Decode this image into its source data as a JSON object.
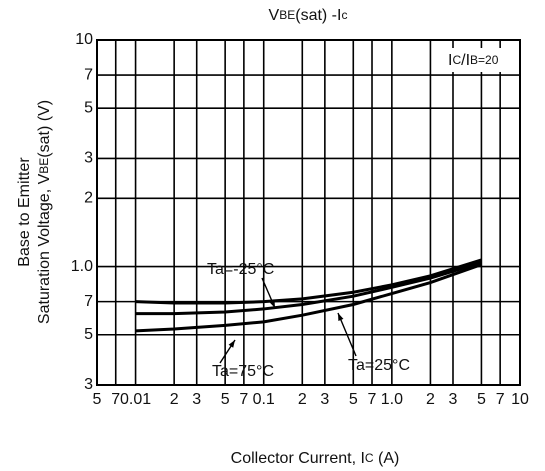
{
  "chart_data": {
    "type": "line",
    "title": [
      "V",
      "BE",
      "(sat) -I",
      "c"
    ],
    "y_label": [
      [
        "Base to Emitter"
      ],
      [
        "Saturation Voltage, V",
        "BE",
        "(sat) (V)"
      ]
    ],
    "x_label": [
      "Collector Current, I",
      "C",
      " (A)"
    ],
    "annotation": [
      "I",
      "C",
      "/I",
      "B=20"
    ],
    "log_x": true,
    "log_y": true,
    "grid": true,
    "color": "#000000",
    "xlim": [
      0.005,
      10
    ],
    "xticks": [
      {
        "value": 0.005,
        "label": "5"
      },
      {
        "value": 0.007,
        "label": "7"
      },
      0.01,
      {
        "value": 0.02,
        "label": "2"
      },
      {
        "value": 0.03,
        "label": "3"
      },
      {
        "value": 0.05,
        "label": "5"
      },
      {
        "value": 0.07,
        "label": "7"
      },
      0.1,
      {
        "value": 0.2,
        "label": "2"
      },
      {
        "value": 0.3,
        "label": "3"
      },
      {
        "value": 0.5,
        "label": "5"
      },
      {
        "value": 0.7,
        "label": "7"
      },
      {
        "value": 1,
        "label": "1.0"
      },
      2,
      3,
      5,
      7,
      10
    ],
    "ylim": [
      0.3,
      10
    ],
    "yticks": [
      {
        "value": 0.3,
        "label": "3"
      },
      {
        "value": 0.5,
        "label": "5"
      },
      {
        "value": 0.7,
        "label": "7"
      },
      {
        "value": 1,
        "label": "1.0"
      },
      2,
      3,
      5,
      7,
      10
    ],
    "x": [
      0.01,
      0.02,
      0.05,
      0.1,
      0.2,
      0.5,
      1,
      2,
      5
    ],
    "series": [
      {
        "name": "Ta=-25°C",
        "values": [
          0.7,
          0.69,
          0.69,
          0.7,
          0.72,
          0.77,
          0.83,
          0.91,
          1.07
        ]
      },
      {
        "name": "Ta=25°C",
        "values": [
          0.62,
          0.62,
          0.63,
          0.65,
          0.68,
          0.74,
          0.81,
          0.89,
          1.04
        ]
      },
      {
        "name": "Ta=75°C",
        "values": [
          0.52,
          0.53,
          0.55,
          0.57,
          0.61,
          0.68,
          0.76,
          0.85,
          1.02
        ]
      }
    ]
  }
}
